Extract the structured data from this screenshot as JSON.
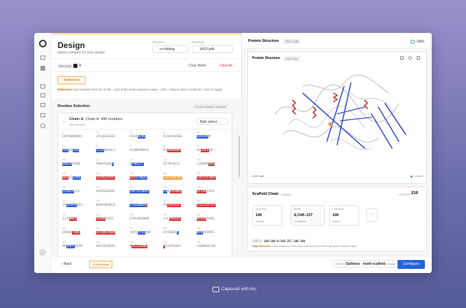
{
  "left": {
    "title": "Design",
    "subtitle": "Select residues for your design",
    "project_label": "PROJECT",
    "project": "co-folding",
    "protein_label": "PROTEIN",
    "protein": "1ASY.pdb",
    "protein_badge": "PROTEIN",
    "chain_checkbox": "A",
    "clear_mode": "Clear Mode",
    "clear_all": "Clear All",
    "reference_button": "Reference",
    "hint_label": "Reference",
    "hint": "Kept verbatim from the ref file = part of the chain sequence range · Click + drag to select. Cmd/Ctrl + click to toggle",
    "residue_selection": "Residue Selection",
    "selected_count": "10 total residues selected",
    "chain_label": "Chain A:",
    "chain_title": "Chain A: 490 residues",
    "chain_sub": "490 residues",
    "bulk_select": "Bulk select...",
    "back": "Back",
    "reference_count": "10 Reference"
  },
  "residues": {
    "colors": {
      "blue": "#2d5bd0",
      "red": "#cf3434",
      "orange": "#f0a436"
    },
    "rows": [
      [
        {
          "n": 1,
          "s": [
            {
              "t": "EDTAKDNVQK"
            }
          ]
        },
        {
          "n": 11,
          "s": [
            {
              "t": "LPLQEEGDGS"
            }
          ]
        },
        {
          "n": 21,
          "s": [
            {
              "t": "RIGR"
            },
            {
              "t": "KIVE",
              "hl": "blue"
            }
          ]
        },
        {
          "n": 31,
          "s": [
            {
              "t": "DLSKASEDDE"
            }
          ]
        },
        {
          "n": 41,
          "s": [
            {
              "t": "EVLFRA",
              "hl": "blue"
            },
            {
              "t": "M"
            }
          ]
        }
      ],
      [
        {
          "n": 51,
          "s": [
            {
              "t": "TRG",
              "hl": "blue"
            },
            {
              "t": "GG"
            },
            {
              "t": "LAF",
              "hl": "blue"
            }
          ]
        },
        {
          "n": 61,
          "s": [
            {
              "t": "LTLR",
              "hl": "blue"
            },
            {
              "t": "QQAGLI"
            }
          ]
        },
        {
          "n": 71,
          "s": [
            {
              "t": "ELQNVHRRCD"
            }
          ]
        },
        {
          "n": 81,
          "s": [
            {
              "t": "EE"
            },
            {
              "t": "KNMVKWA",
              "hl": "red"
            }
          ]
        },
        {
          "n": 91,
          "s": [
            {
              "t": "QG"
            },
            {
              "t": "IRLE",
              "hl": "red"
            },
            {
              "t": "AN"
            }
          ]
        }
      ],
      [
        {
          "n": 101,
          "s": [
            {
              "t": "VRDIV",
              "hl": "blue"
            },
            {
              "t": "RVQD"
            }
          ]
        },
        {
          "n": 111,
          "s": [
            {
              "t": "PHKATVQA"
            },
            {
              "t": "L",
              "hl": "blue"
            }
          ]
        },
        {
          "n": 121,
          "s": [
            {
              "t": "E"
            },
            {
              "t": "FHKIYT",
              "hl": "blue"
            }
          ]
        },
        {
          "n": 131,
          "s": [
            {
              "t": "EETPLRLFL"
            }
          ]
        },
        {
          "n": 141,
          "s": [
            {
              "t": "LCDARR"
            },
            {
              "t": "KAE",
              "hl": "red"
            }
          ]
        }
      ],
      [
        {
          "n": 151,
          "s": [
            {
              "t": "AEA",
              "hl": "red"
            },
            {
              "t": "FG"
            },
            {
              "t": "LPVV",
              "hl": "blue"
            }
          ]
        },
        {
          "n": 161,
          "s": [
            {
              "t": "LDTRLDYRVI",
              "hl": "red"
            }
          ]
        },
        {
          "n": 171,
          "s": [
            {
              "t": "DLR",
              "hl": "red"
            },
            {
              "t": "VTNQAI",
              "hl": "blue"
            }
          ]
        },
        {
          "n": 181,
          "s": [
            {
              "t": "GSEISSFLRE",
              "hl": "orange"
            }
          ]
        },
        {
          "n": 191,
          "s": [
            {
              "t": "FREYLATKRF",
              "hl": "red"
            }
          ]
        }
      ],
      [
        {
          "n": 201,
          "s": [
            {
              "t": "TEVHTP",
              "hl": "blue"
            },
            {
              "t": "ILG"
            }
          ]
        },
        {
          "n": 211,
          "s": [
            {
              "t": "APSEGGERVF"
            }
          ]
        },
        {
          "n": 221,
          "s": [
            {
              "t": "LNYTFP",
              "hl": "blue"
            },
            {
              "t": "QKAY",
              "hl": "blue"
            }
          ]
        },
        {
          "n": 231,
          "s": [
            {
              "t": "LA",
              "hl": "blue"
            },
            {
              "t": "G"
            },
            {
              "t": "PQFNKQ",
              "hl": "red"
            }
          ]
        },
        {
          "n": 241,
          "s": [
            {
              "t": "QLIVA",
              "hl": "red"
            },
            {
              "t": "SFEV"
            }
          ]
        }
      ],
      [
        {
          "n": 251,
          "s": [
            {
              "t": "YG"
            },
            {
              "t": "GPVFR",
              "hl": "blue"
            },
            {
              "t": "GEV"
            }
          ]
        },
        {
          "n": 261,
          "s": [
            {
              "t": "NSNTGKIRLR"
            }
          ]
        },
        {
          "n": 271,
          "s": [
            {
              "t": "FTGLDMEM",
              "hl": "blue"
            },
            {
              "t": "E",
              "hl": "red"
            }
          ]
        },
        {
          "n": 281,
          "s": [
            {
              "t": "PV"
            },
            {
              "t": "FHEVLDT",
              "hl": "red"
            }
          ]
        },
        {
          "n": 291,
          "s": [
            {
              "t": "LSELFVFIFS",
              "hl": "red"
            }
          ]
        }
      ],
      [
        {
          "n": 301,
          "s": [
            {
              "t": "E"
            },
            {
              "t": "LP"
            },
            {
              "t": "AMEI",
              "hl": "red"
            }
          ]
        },
        {
          "n": 311,
          "s": [
            {
              "t": "ELVRE",
              "hl": "red"
            },
            {
              "t": "GPSS"
            }
          ]
        },
        {
          "n": 321,
          "s": [
            {
              "t": "EFKLPNIRKM"
            }
          ]
        },
        {
          "n": 331,
          "s": [
            {
              "t": "LYL"
            },
            {
              "t": "YKEGIE",
              "hl": "red"
            }
          ]
        },
        {
          "n": 341,
          "s": [
            {
              "t": "MLRAA",
              "hl": "red"
            },
            {
              "t": "QFRQ"
            }
          ]
        }
      ],
      [
        {
          "n": 351,
          "s": [
            {
              "t": "DFDRV"
            },
            {
              "t": "TENE",
              "hl": "red"
            }
          ]
        },
        {
          "n": 361,
          "s": [
            {
              "t": "EFLDKLVRDK",
              "hl": "red"
            }
          ]
        },
        {
          "n": 371,
          "s": [
            {
              "t": "YDTE"
            },
            {
              "t": "FYIL",
              "hl": "blue"
            },
            {
              "t": "DKF"
            }
          ]
        },
        {
          "n": 381,
          "s": [
            {
              "t": "FPIEWPG"
            },
            {
              "t": "T",
              "hl": "blue"
            }
          ]
        },
        {
          "n": 391,
          "s": [
            {
              "t": "MPD",
              "hl": "blue"
            },
            {
              "t": "RFPKYG"
            }
          ]
        }
      ],
      [
        {
          "n": 401,
          "s": [
            {
              "t": "MD"
            },
            {
              "t": "YDFF",
              "hl": "blue"
            },
            {
              "t": "KEPR"
            }
          ]
        },
        {
          "n": 411,
          "s": [
            {
              "t": "AVLSEGQAPA"
            }
          ]
        },
        {
          "n": 421,
          "s": [
            {
              "t": "N"
            },
            {
              "t": "ALLGERWE",
              "hl": "red"
            }
          ]
        },
        {
          "n": 431,
          "s": [
            {
              "t": "A",
              "hl": "red"
            },
            {
              "t": "ELPESGEA"
            }
          ]
        },
        {
          "n": 441,
          "s": [
            {
              "t": "LRDPDGGLAE"
            }
          ]
        }
      ]
    ]
  },
  "right": {
    "header": "Protein Structure",
    "file_chip": "1ASY.pdb",
    "credits": 2000,
    "viewer_title": "Protein Structure",
    "viewer_chip": "1ASY.pdb",
    "viewer_file": "1ASY.pdb",
    "status": "Loaded",
    "scaffold_title": "Scaffold Chain",
    "blocks_count": "3 blocks",
    "length_label": "LENGTH",
    "length": 210,
    "blocks": [
      {
        "label": "N-REGION",
        "value": 100,
        "sub": "residues"
      },
      {
        "label": "MOTIF",
        "value": "A/248-257",
        "sub": "10 residues"
      },
      {
        "label": "C-REGION",
        "value": 100,
        "sub": "residues"
      }
    ],
    "add": "+",
    "contig_label": "CONTIG",
    "contig": "100-100,A/248-257,100-100",
    "help_label": "Drag Reference",
    "help": "on the sequence to see fixed motif blocks; the fold is generated scaffold region.",
    "mode_label": "MODE",
    "mode": "Optimize · motif scaffold",
    "change": "Change",
    "configure": "Configure"
  },
  "footer": "Captured with Arc"
}
